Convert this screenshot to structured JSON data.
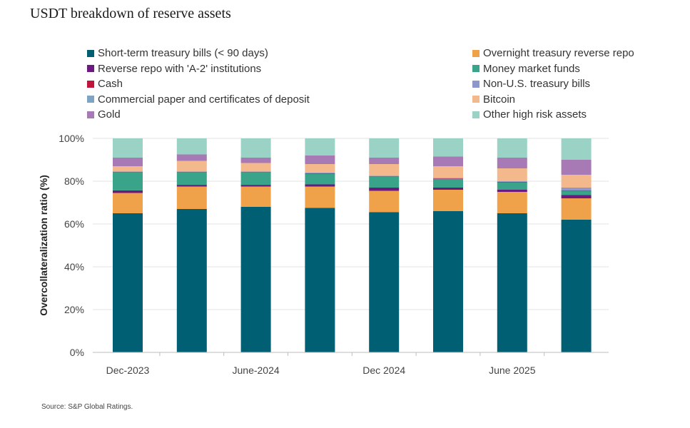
{
  "title": "USDT breakdown of reserve assets",
  "source": "Source: S&P Global Ratings.",
  "chart_data": {
    "type": "bar",
    "stacked": true,
    "title": "USDT breakdown of reserve assets",
    "xlabel": "",
    "ylabel": "Overcollateralization ratio (%)",
    "ylim": [
      0,
      100
    ],
    "yticks": [
      "0%",
      "20%",
      "40%",
      "60%",
      "80%",
      "100%"
    ],
    "grid": true,
    "legend_position": "top",
    "categories": [
      "Dec-2023",
      "",
      "June-2024",
      "",
      "Dec 2024",
      "",
      "June 2025",
      ""
    ],
    "series": [
      {
        "name": "Short-term treasury bills (< 90 days)",
        "color": "#005f73",
        "values": [
          65,
          67,
          68,
          67.5,
          65.5,
          66,
          65,
          62
        ]
      },
      {
        "name": "Overnight treasury reverse repo",
        "color": "#f0a24a",
        "values": [
          9.5,
          10.5,
          9.5,
          10,
          10,
          10,
          10,
          10
        ]
      },
      {
        "name": "Reverse repo with 'A-2' institutions",
        "color": "#6b1a80",
        "values": [
          1.2,
          0.8,
          0.8,
          1,
          1.5,
          1,
          1,
          1.5
        ]
      },
      {
        "name": "Money market funds",
        "color": "#3aa48a",
        "values": [
          8.3,
          5.7,
          5.7,
          5,
          5,
          4,
          3.5,
          2
        ]
      },
      {
        "name": "Cash",
        "color": "#c0143c",
        "values": [
          0.2,
          0.2,
          0.2,
          0.2,
          0.2,
          0.2,
          0.2,
          0.2
        ]
      },
      {
        "name": "Non-U.S. treasury bills",
        "color": "#8d97cc",
        "values": [
          0.3,
          0.3,
          0.3,
          0.3,
          0.3,
          0.3,
          0.3,
          1.3
        ]
      },
      {
        "name": "Commercial paper and certificates of deposit",
        "color": "#7fa3c2",
        "values": [
          0,
          0,
          0,
          0,
          0,
          0,
          0,
          0
        ]
      },
      {
        "name": "Bitcoin",
        "color": "#f3b98c",
        "values": [
          2.5,
          5,
          4,
          4,
          5.5,
          5.5,
          6,
          6
        ]
      },
      {
        "name": "Gold",
        "color": "#a87ab5",
        "values": [
          4,
          3,
          2.5,
          4,
          3,
          4.5,
          5,
          7
        ]
      },
      {
        "name": "Other high risk assets",
        "color": "#9ad3c5",
        "values": [
          9,
          7.5,
          9,
          8,
          9,
          8.5,
          9,
          10
        ]
      }
    ]
  }
}
